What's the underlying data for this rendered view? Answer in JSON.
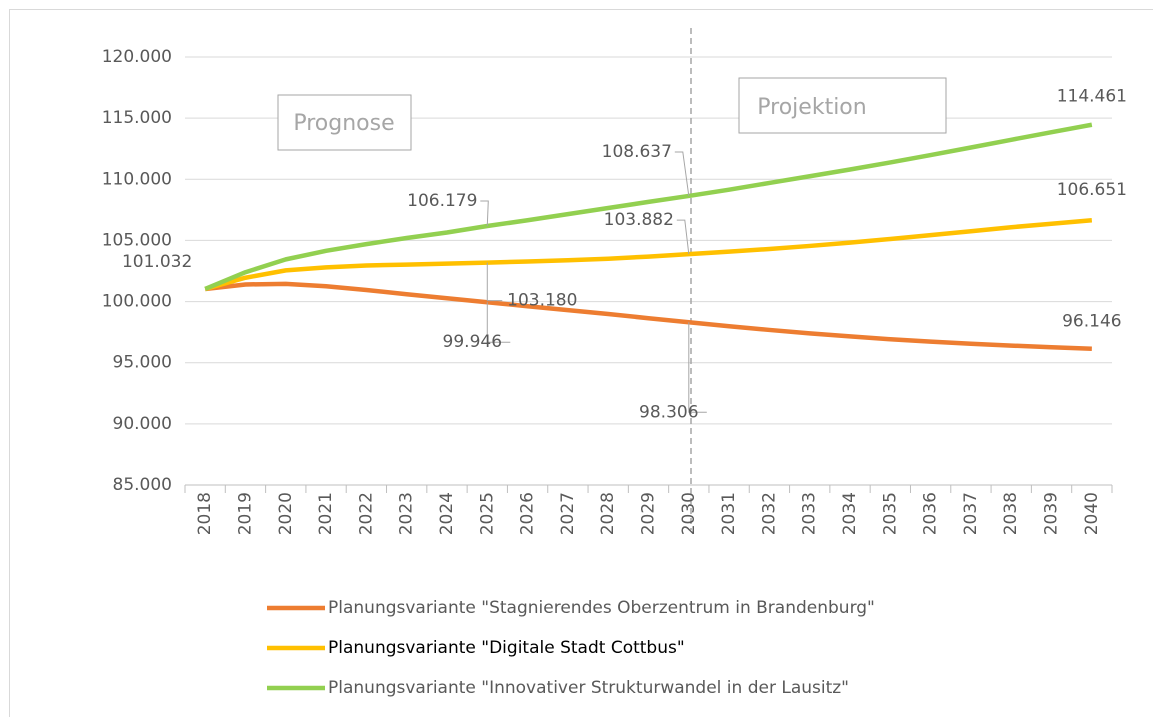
{
  "chart_data": {
    "type": "line",
    "categories": [
      "2018",
      "2019",
      "2020",
      "2021",
      "2022",
      "2023",
      "2024",
      "2025",
      "2026",
      "2027",
      "2028",
      "2029",
      "2030",
      "2031",
      "2032",
      "2033",
      "2034",
      "2035",
      "2036",
      "2037",
      "2038",
      "2039",
      "2040"
    ],
    "series": [
      {
        "name": "Planungsvariante \"Stagnierendes Oberzentrum in Brandenburg\"",
        "color": "#ed7d31",
        "values": [
          101032,
          101400,
          101450,
          101250,
          100950,
          100600,
          100270,
          99946,
          99620,
          99300,
          98980,
          98640,
          98306,
          97980,
          97680,
          97400,
          97150,
          96920,
          96720,
          96550,
          96400,
          96260,
          96146
        ],
        "value_labels": [
          "101.032",
          null,
          null,
          null,
          null,
          null,
          null,
          "99.946",
          null,
          null,
          null,
          null,
          "98.306",
          null,
          null,
          null,
          null,
          null,
          null,
          null,
          null,
          null,
          "96.146"
        ]
      },
      {
        "name": "Planungsvariante \"Digitale Stadt Cottbus\"",
        "color": "#ffc000",
        "values": [
          101032,
          101950,
          102550,
          102800,
          102950,
          103020,
          103100,
          103180,
          103280,
          103380,
          103500,
          103680,
          103882,
          104080,
          104300,
          104550,
          104820,
          105120,
          105430,
          105750,
          106080,
          106360,
          106651
        ],
        "value_labels": [
          null,
          null,
          null,
          null,
          null,
          null,
          null,
          "103.180",
          null,
          null,
          null,
          null,
          "103.882",
          null,
          null,
          null,
          null,
          null,
          null,
          null,
          null,
          null,
          "106.651"
        ]
      },
      {
        "name": "Planungsvariante \"Innovativer Strukturwandel in der Lausitz\"",
        "color": "#92d050",
        "values": [
          101032,
          102400,
          103450,
          104150,
          104700,
          105200,
          105650,
          106179,
          106650,
          107150,
          107650,
          108150,
          108637,
          109150,
          109700,
          110250,
          110800,
          111380,
          111980,
          112600,
          113230,
          113850,
          114461
        ],
        "value_labels": [
          null,
          null,
          null,
          null,
          null,
          null,
          null,
          "106.179",
          null,
          null,
          null,
          null,
          "108.637",
          null,
          null,
          null,
          null,
          null,
          null,
          null,
          null,
          null,
          "114.461"
        ]
      }
    ],
    "ylim": [
      85000,
      120000
    ],
    "yticks": [
      {
        "value": 85000,
        "label": "85.000"
      },
      {
        "value": 90000,
        "label": "90.000"
      },
      {
        "value": 95000,
        "label": "95.000"
      },
      {
        "value": 100000,
        "label": "100.000"
      },
      {
        "value": 105000,
        "label": "105.000"
      },
      {
        "value": 110000,
        "label": "110.000"
      },
      {
        "value": 115000,
        "label": "115.000"
      },
      {
        "value": 120000,
        "label": "120.000"
      }
    ],
    "grid": true,
    "annotations": [
      "Prognose",
      "Projektion"
    ]
  }
}
